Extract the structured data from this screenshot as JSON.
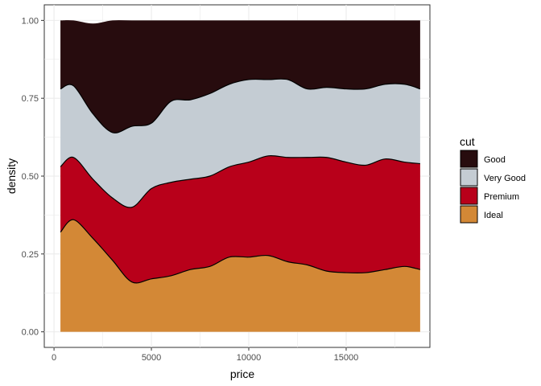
{
  "chart_data": {
    "type": "area",
    "subtype": "stacked-fill-density",
    "xlabel": "price",
    "ylabel": "density",
    "xlim": [
      -500,
      19300
    ],
    "ylim": [
      -0.05,
      1.05
    ],
    "x_ticks": [
      0,
      5000,
      10000,
      15000
    ],
    "x_tick_labels": [
      "0",
      "5000",
      "10000",
      "15000"
    ],
    "y_ticks": [
      0,
      0.25,
      0.5,
      0.75,
      1.0
    ],
    "y_tick_labels": [
      "0.00",
      "0.25",
      "0.50",
      "0.75",
      "1.00"
    ],
    "grid": true,
    "legend": {
      "title": "cut",
      "position": "right",
      "entries": [
        "Good",
        "Very Good",
        "Premium",
        "Ideal"
      ]
    },
    "x": [
      330,
      1000,
      2000,
      3000,
      4000,
      5000,
      6000,
      7000,
      8000,
      9000,
      10000,
      11000,
      12000,
      13000,
      14000,
      15000,
      16000,
      17000,
      18000,
      18800
    ],
    "series": [
      {
        "name": "Ideal",
        "color": "#D38836",
        "values": [
          0.32,
          0.36,
          0.3,
          0.23,
          0.16,
          0.17,
          0.18,
          0.2,
          0.21,
          0.24,
          0.24,
          0.245,
          0.225,
          0.215,
          0.195,
          0.19,
          0.19,
          0.2,
          0.21,
          0.2
        ]
      },
      {
        "name": "Premium",
        "color": "#B8001A",
        "values": [
          0.21,
          0.2,
          0.19,
          0.2,
          0.24,
          0.29,
          0.3,
          0.29,
          0.29,
          0.29,
          0.305,
          0.32,
          0.335,
          0.345,
          0.365,
          0.355,
          0.345,
          0.355,
          0.335,
          0.34
        ]
      },
      {
        "name": "Very Good",
        "color": "#C4CCD3",
        "values": [
          0.25,
          0.23,
          0.21,
          0.21,
          0.26,
          0.21,
          0.26,
          0.255,
          0.265,
          0.265,
          0.265,
          0.245,
          0.25,
          0.22,
          0.225,
          0.235,
          0.245,
          0.24,
          0.25,
          0.24
        ]
      },
      {
        "name": "Good",
        "color": "#270C0E",
        "values": [
          0.22,
          0.21,
          0.29,
          0.36,
          0.34,
          0.33,
          0.26,
          0.255,
          0.235,
          0.205,
          0.19,
          0.19,
          0.19,
          0.22,
          0.215,
          0.22,
          0.22,
          0.205,
          0.205,
          0.22
        ]
      }
    ]
  }
}
